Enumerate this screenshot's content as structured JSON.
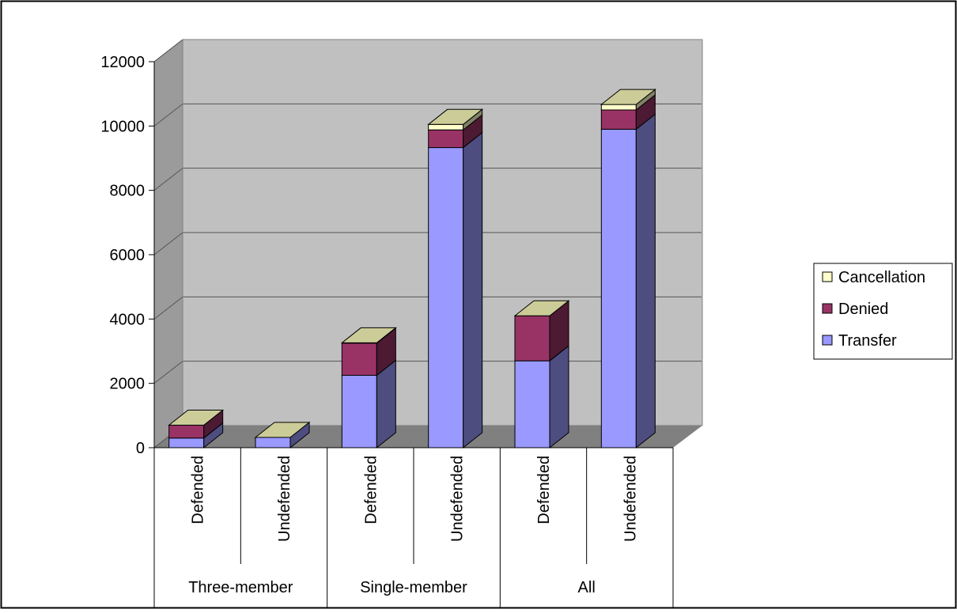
{
  "chart_data": {
    "type": "bar",
    "stacked": true,
    "three_d": true,
    "categories": [
      {
        "group": "Three-member",
        "label": "Defended"
      },
      {
        "group": "Three-member",
        "label": "Undefended"
      },
      {
        "group": "Single-member",
        "label": "Defended"
      },
      {
        "group": "Single-member",
        "label": "Undefended"
      },
      {
        "group": "All",
        "label": "Defended"
      },
      {
        "group": "All",
        "label": "Undefended"
      }
    ],
    "groups": [
      "Three-member",
      "Single-member",
      "All"
    ],
    "series": [
      {
        "name": "Transfer",
        "color": "#9999ff",
        "values": [
          300,
          320,
          2250,
          9330,
          2700,
          9900
        ]
      },
      {
        "name": "Denied",
        "color": "#993366",
        "values": [
          400,
          0,
          1000,
          550,
          1400,
          600
        ]
      },
      {
        "name": "Cancellation",
        "color": "#ffffcc",
        "values": [
          0,
          0,
          10,
          170,
          0,
          170
        ]
      }
    ],
    "y_ticks": [
      "0",
      "2000",
      "4000",
      "6000",
      "8000",
      "10000",
      "12000"
    ],
    "ylim": [
      0,
      12000
    ],
    "grid": true,
    "legend_position": "right",
    "legend_order": [
      "Cancellation",
      "Denied",
      "Transfer"
    ]
  }
}
